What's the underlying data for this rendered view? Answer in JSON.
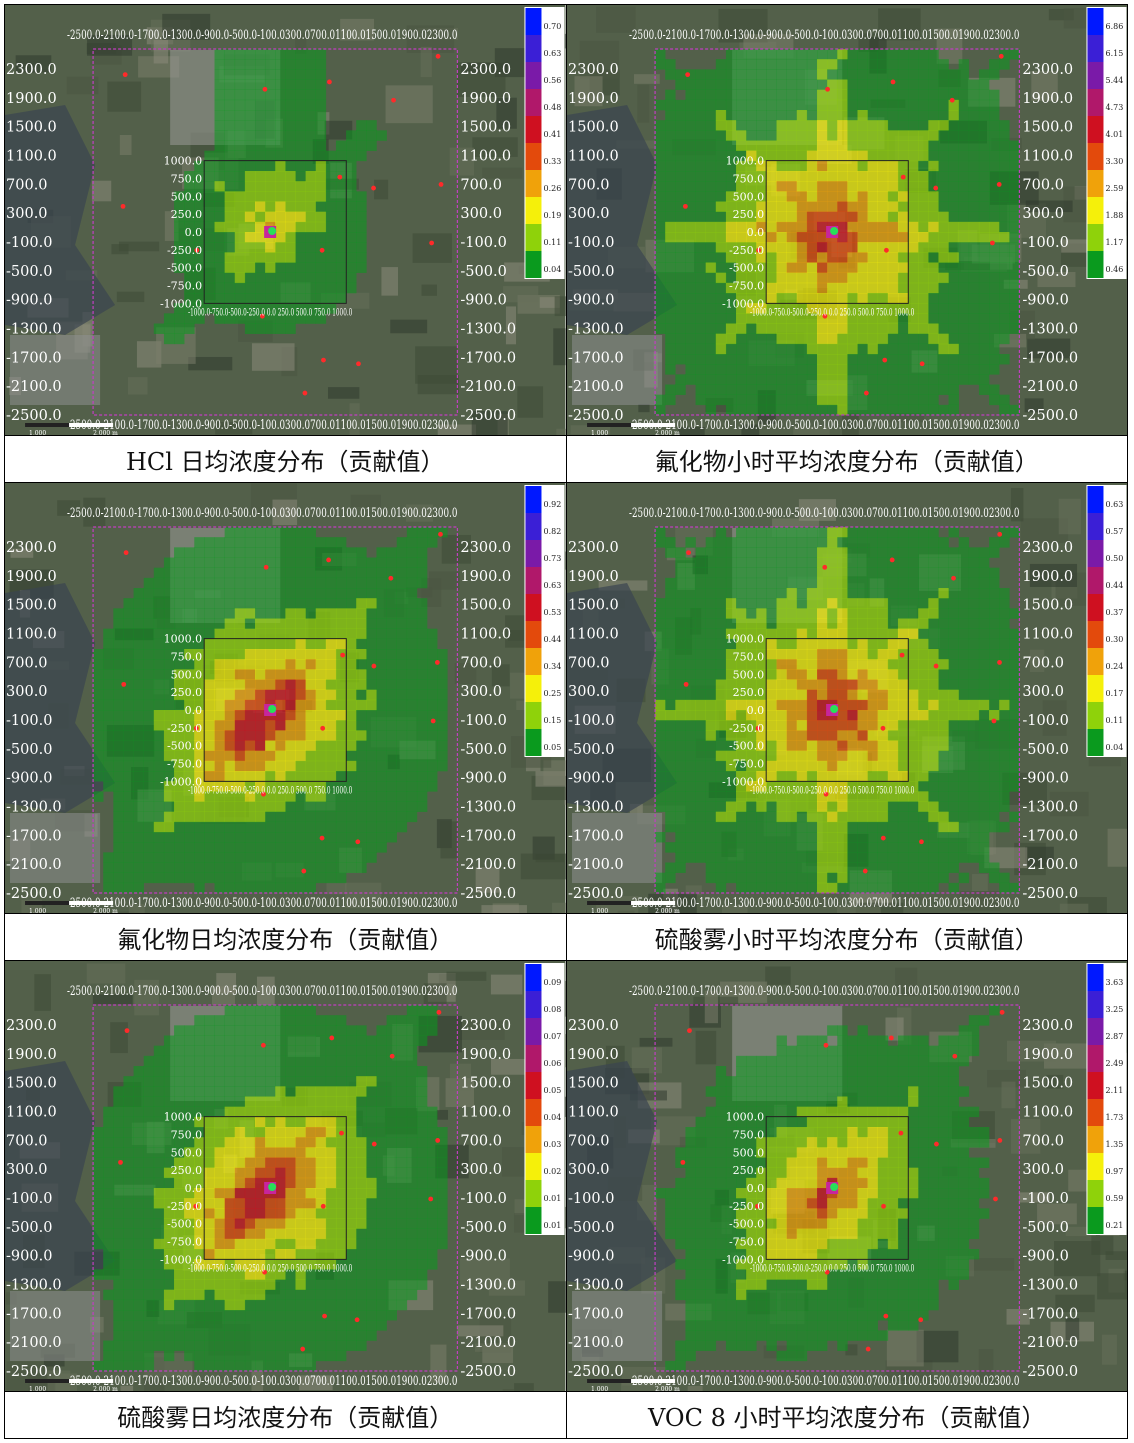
{
  "panels": [
    {
      "caption": "HCl 日均浓度分布（贡献值）",
      "legend": [
        "0.70",
        "0.63",
        "0.56",
        "0.48",
        "0.41",
        "0.33",
        "0.26",
        "0.19",
        "0.11",
        "0.04"
      ],
      "plume_intensity": 0.35,
      "plume_spread": 0.45,
      "plume_direction": "north"
    },
    {
      "caption": "氟化物小时平均浓度分布（贡献值）",
      "legend": [
        "6.86",
        "6.15",
        "5.44",
        "4.73",
        "4.01",
        "3.30",
        "2.59",
        "1.88",
        "1.17",
        "0.46"
      ],
      "plume_intensity": 0.75,
      "plume_spread": 1.0,
      "plume_direction": "radial"
    },
    {
      "caption": "氟化物日均浓度分布（贡献值）",
      "legend": [
        "0.92",
        "0.82",
        "0.73",
        "0.63",
        "0.53",
        "0.44",
        "0.34",
        "0.25",
        "0.15",
        "0.05"
      ],
      "plume_intensity": 0.85,
      "plume_spread": 0.9,
      "plume_direction": "diagonal"
    },
    {
      "caption": "硫酸雾小时平均浓度分布（贡献值）",
      "legend": [
        "0.63",
        "0.57",
        "0.50",
        "0.44",
        "0.37",
        "0.30",
        "0.24",
        "0.17",
        "0.11",
        "0.04"
      ],
      "plume_intensity": 0.75,
      "plume_spread": 1.0,
      "plume_direction": "radial"
    },
    {
      "caption": "硫酸雾日均浓度分布（贡献值）",
      "legend": [
        "0.09",
        "0.08",
        "0.07",
        "0.06",
        "0.05",
        "0.04",
        "0.03",
        "0.02",
        "0.01",
        "0.01"
      ],
      "plume_intensity": 0.85,
      "plume_spread": 0.9,
      "plume_direction": "diagonal"
    },
    {
      "caption": "VOC 8 小时平均浓度分布（贡献值）",
      "legend": [
        "3.63",
        "3.25",
        "2.87",
        "2.49",
        "2.11",
        "1.73",
        "1.35",
        "0.97",
        "0.59",
        "0.21"
      ],
      "plume_intensity": 0.65,
      "plume_spread": 0.6,
      "plume_direction": "diagonal"
    }
  ],
  "outer_y_ticks": [
    "2300.0",
    "1900.0",
    "1500.0",
    "1100.0",
    "700.0",
    "300.0",
    "-100.0",
    "-500.0",
    "-900.0",
    "-1300.0",
    "-1700.0",
    "-2100.0",
    "-2500.0"
  ],
  "outer_x_ticks_text": "-2500.0-2100.0-1700.0-1300.0-900.0-500.0-100.0300.0700.01100.01500.01900.02300.0",
  "inner_y_ticks": [
    "1000.0",
    "750.0",
    "500.0",
    "250.0",
    "0.0",
    "-250.0",
    "-500.0",
    "-750.0",
    "-1000.0"
  ],
  "inner_x_ticks_text": "-1000.0-750.0-500.0-250.0 0.0 250.0 500.0 750.0 1000.0",
  "scale_bar": [
    "1,000",
    "2,000 m"
  ],
  "colors": {
    "legend_scale": [
      "#0018ff",
      "#3b1fd6",
      "#7a1aa8",
      "#b0186a",
      "#cf1020",
      "#e34a0c",
      "#f0a20a",
      "#f5f00a",
      "#8fd20a",
      "#0a9a1e"
    ],
    "page_border": "#c13ec1",
    "background_map": "#53604a",
    "plume_green": "#2fa32f"
  }
}
